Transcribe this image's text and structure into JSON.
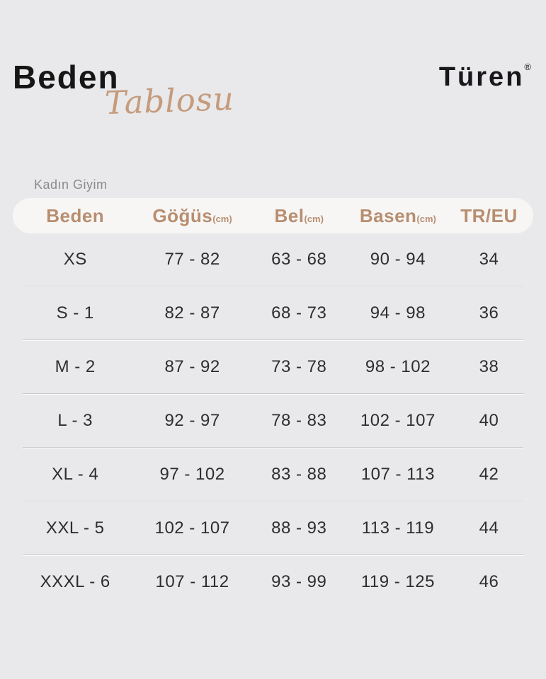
{
  "brand": {
    "logo_text": "Türen",
    "registered_mark": "®"
  },
  "title": {
    "line1": "Beden",
    "line2": "Tablosu"
  },
  "section_label": "Kadın Giyim",
  "table": {
    "columns": [
      {
        "label": "Beden",
        "unit": ""
      },
      {
        "label": "Göğüs",
        "unit": "(cm)"
      },
      {
        "label": "Bel",
        "unit": "(cm)"
      },
      {
        "label": "Basen",
        "unit": "(cm)"
      },
      {
        "label": "TR/EU",
        "unit": ""
      }
    ],
    "rows": [
      {
        "size": "XS",
        "chest": "77 - 82",
        "waist": "63 - 68",
        "hips": "90 - 94",
        "tr_eu": "34"
      },
      {
        "size": "S - 1",
        "chest": "82 - 87",
        "waist": "68 - 73",
        "hips": "94 - 98",
        "tr_eu": "36"
      },
      {
        "size": "M - 2",
        "chest": "87 - 92",
        "waist": "73 - 78",
        "hips": "98 - 102",
        "tr_eu": "38"
      },
      {
        "size": "L - 3",
        "chest": "92 - 97",
        "waist": "78 - 83",
        "hips": "102 - 107",
        "tr_eu": "40"
      },
      {
        "size": "XL - 4",
        "chest": "97 - 102",
        "waist": "83 - 88",
        "hips": "107 - 113",
        "tr_eu": "42"
      },
      {
        "size": "XXL - 5",
        "chest": "102 - 107",
        "waist": "88 - 93",
        "hips": "113 - 119",
        "tr_eu": "44"
      },
      {
        "size": "XXXL - 6",
        "chest": "107 - 112",
        "waist": "93 - 99",
        "hips": "119 - 125",
        "tr_eu": "46"
      }
    ]
  },
  "colors": {
    "background": "#e9e8ea",
    "header_pill": "#f7f6f5",
    "accent_tan": "#b88e70",
    "script_tan": "#c49b7c",
    "title_black": "#161616",
    "text_dark": "#2e2d2f",
    "muted_gray": "#8b8b8b"
  }
}
